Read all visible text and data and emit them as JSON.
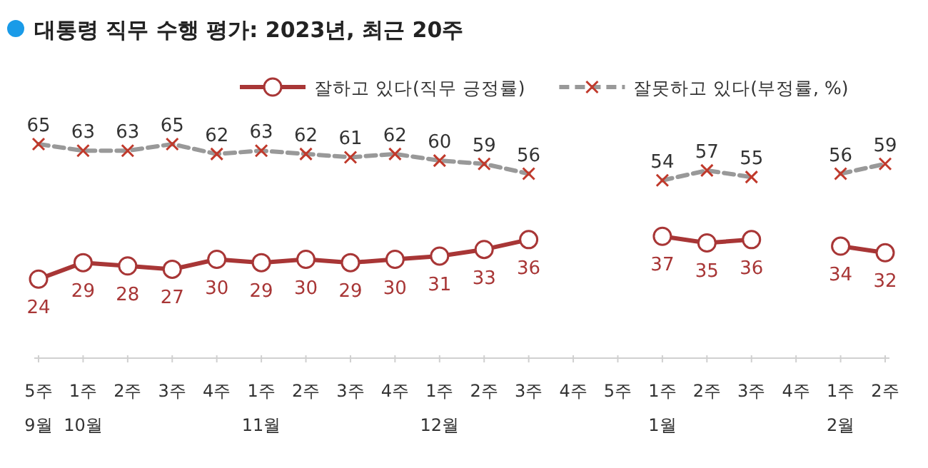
{
  "chart_data": {
    "type": "line",
    "title": "대통령 직무 수행 평가: 2023년, 최근 20주",
    "categories": [
      "5주\n9월",
      "1주\n10월",
      "2주",
      "3주",
      "4주",
      "1주\n11월",
      "2주",
      "3주",
      "4주",
      "1주\n12월",
      "2주",
      "3주",
      "4주",
      "5주",
      "1주\n1월",
      "2주",
      "3주",
      "4주",
      "1주\n2월",
      "2주"
    ],
    "series": [
      {
        "name": "잘하고 있다(직무 긍정률)",
        "color": "#a83636",
        "marker": "circle",
        "line_style": "solid",
        "values": [
          24,
          29,
          28,
          27,
          30,
          29,
          30,
          29,
          30,
          31,
          33,
          36,
          null,
          null,
          37,
          35,
          36,
          null,
          34,
          32
        ]
      },
      {
        "name": "잘못하고 있다(부정률, %)",
        "color": "#999999",
        "marker": "cross",
        "line_style": "dashed",
        "values": [
          65,
          63,
          63,
          65,
          62,
          63,
          62,
          61,
          62,
          60,
          59,
          56,
          null,
          null,
          54,
          57,
          55,
          null,
          56,
          59
        ]
      }
    ],
    "data_labels": true,
    "legend": "top"
  }
}
